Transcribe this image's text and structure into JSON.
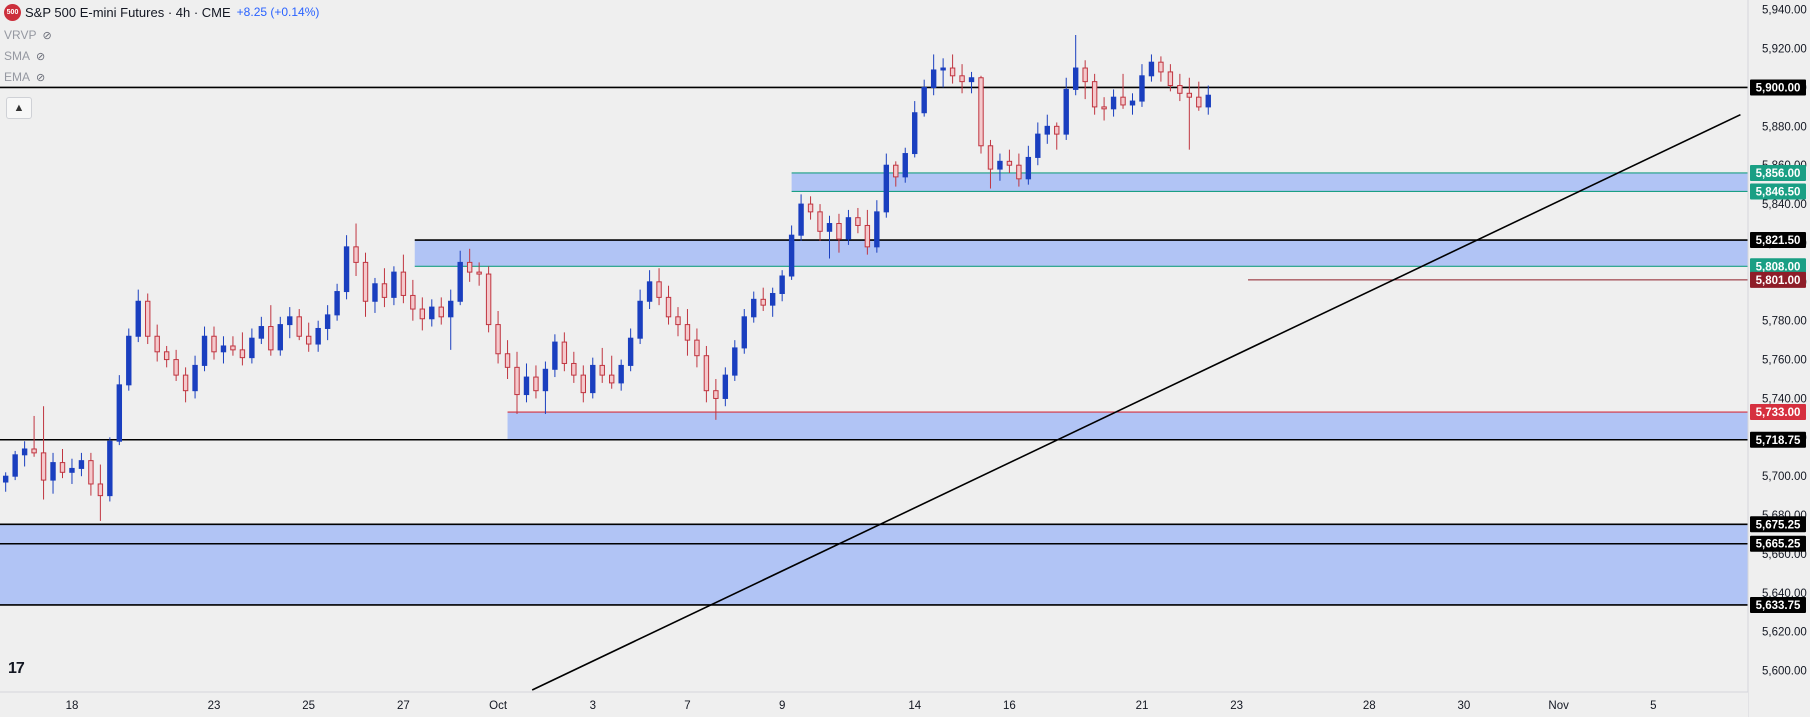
{
  "header": {
    "logo_text": "500",
    "title": "S&P 500 E-mini Futures · 4h · CME",
    "change": "+8.25 (+0.14%)"
  },
  "indicators": [
    {
      "label": "VRVP",
      "icon": "eye-off-icon"
    },
    {
      "label": "SMA",
      "icon": "eye-off-icon"
    },
    {
      "label": "EMA",
      "icon": "eye-off-icon"
    }
  ],
  "collapse_icon": "chevron-up-icon",
  "tv_logo": "17",
  "colors": {
    "background": "#efefef",
    "up": "#1a3fbf",
    "down": "#c03540",
    "zone": "#aabff5",
    "level_black": "#000000",
    "level_red": "#d6303f",
    "level_green": "#1a9f84",
    "level_maroon": "#8e1d28"
  },
  "chart_data": {
    "type": "candlestick",
    "ylim": [
      5590,
      5945
    ],
    "price_ticks": [
      "5,600.00",
      "5,620.00",
      "5,640.00",
      "5,660.00",
      "5,680.00",
      "5,700.00",
      "5,720.00",
      "5,740.00",
      "5,760.00",
      "5,780.00",
      "5,800.00",
      "5,820.00",
      "5,840.00",
      "5,860.00",
      "5,880.00",
      "5,900.00",
      "5,920.00",
      "5,940.00"
    ],
    "x_ticks": [
      {
        "label": "18",
        "at": 3.5
      },
      {
        "label": "23",
        "at": 11
      },
      {
        "label": "25",
        "at": 16
      },
      {
        "label": "27",
        "at": 21
      },
      {
        "label": "Oct",
        "at": 26
      },
      {
        "label": "3",
        "at": 31
      },
      {
        "label": "7",
        "at": 36
      },
      {
        "label": "9",
        "at": 41
      },
      {
        "label": "14",
        "at": 48
      },
      {
        "label": "16",
        "at": 53
      },
      {
        "label": "21",
        "at": 60
      },
      {
        "label": "23",
        "at": 65
      },
      {
        "label": "28",
        "at": 72
      },
      {
        "label": "30",
        "at": 77
      },
      {
        "label": "Nov",
        "at": 82
      },
      {
        "label": "5",
        "at": 87
      }
    ],
    "x_range": [
      -0.3,
      92
    ],
    "levels": [
      {
        "price": 5900.0,
        "label": "5,900.00",
        "color": "#000000",
        "from": -0.3
      },
      {
        "price": 5856.0,
        "label": "5,856.00",
        "color": "#1a9f84",
        "from": 41.5
      },
      {
        "price": 5846.5,
        "label": "5,846.50",
        "color": "#1a9f84",
        "from": 41.5
      },
      {
        "price": 5821.5,
        "label": "5,821.50",
        "color": "#000000",
        "from": 21.6
      },
      {
        "price": 5808.0,
        "label": "5,808.00",
        "color": "#1a9f84",
        "from": 21.6
      },
      {
        "price": 5801.0,
        "label": "5,801.00",
        "color": "#8e1d28",
        "from": 65.6
      },
      {
        "price": 5733.0,
        "label": "5,733.00",
        "color": "#d6303f",
        "from": 26.5
      },
      {
        "price": 5718.75,
        "label": "5,718.75",
        "color": "#000000",
        "from": -0.3
      },
      {
        "price": 5675.25,
        "label": "5,675.25",
        "color": "#000000",
        "from": -0.3
      },
      {
        "price": 5665.25,
        "label": "5,665.25",
        "color": "#000000",
        "from": -0.3
      },
      {
        "price": 5633.75,
        "label": "5,633.75",
        "color": "#000000",
        "from": -0.3
      }
    ],
    "zones": [
      {
        "from_x": 41.5,
        "low": 5846.5,
        "high": 5856.0
      },
      {
        "from_x": 21.6,
        "low": 5808.0,
        "high": 5821.5
      },
      {
        "from_x": 26.5,
        "low": 5718.75,
        "high": 5733.0
      },
      {
        "from_x": -0.3,
        "low": 5633.75,
        "high": 5675.25
      }
    ],
    "trendline": {
      "x1": 27.8,
      "y1": 5590,
      "x2": 91.6,
      "y2": 5886
    },
    "candles": [
      [
        0,
        5697,
        5702,
        5692,
        5700
      ],
      [
        0.5,
        5700,
        5713,
        5698,
        5711
      ],
      [
        1,
        5711,
        5718,
        5705,
        5714
      ],
      [
        1.5,
        5714,
        5731,
        5710,
        5712
      ],
      [
        2,
        5712,
        5736,
        5688,
        5698
      ],
      [
        2.5,
        5698,
        5712,
        5691,
        5707
      ],
      [
        3,
        5707,
        5714,
        5699,
        5702
      ],
      [
        3.5,
        5702,
        5709,
        5696,
        5704
      ],
      [
        4,
        5704,
        5712,
        5700,
        5708
      ],
      [
        4.5,
        5708,
        5712,
        5690,
        5696
      ],
      [
        5,
        5696,
        5706,
        5677,
        5690
      ],
      [
        5.5,
        5690,
        5720,
        5687,
        5718
      ],
      [
        6,
        5718,
        5752,
        5716,
        5747
      ],
      [
        6.5,
        5747,
        5776,
        5744,
        5772
      ],
      [
        7,
        5772,
        5796,
        5769,
        5790
      ],
      [
        7.5,
        5790,
        5794,
        5768,
        5772
      ],
      [
        8,
        5772,
        5778,
        5759,
        5764
      ],
      [
        8.5,
        5764,
        5767,
        5756,
        5760
      ],
      [
        9,
        5760,
        5765,
        5749,
        5752
      ],
      [
        9.5,
        5752,
        5756,
        5738,
        5744
      ],
      [
        10,
        5744,
        5762,
        5740,
        5757
      ],
      [
        10.5,
        5757,
        5777,
        5754,
        5772
      ],
      [
        11,
        5772,
        5777,
        5760,
        5764
      ],
      [
        11.5,
        5764,
        5772,
        5758,
        5767
      ],
      [
        12,
        5767,
        5772,
        5762,
        5765
      ],
      [
        12.5,
        5765,
        5774,
        5757,
        5761
      ],
      [
        13,
        5761,
        5776,
        5758,
        5771
      ],
      [
        13.5,
        5771,
        5782,
        5768,
        5777
      ],
      [
        14,
        5777,
        5788,
        5762,
        5765
      ],
      [
        14.5,
        5765,
        5782,
        5762,
        5778
      ],
      [
        15,
        5778,
        5787,
        5771,
        5782
      ],
      [
        15.5,
        5782,
        5786,
        5770,
        5772
      ],
      [
        16,
        5772,
        5779,
        5764,
        5768
      ],
      [
        16.5,
        5768,
        5780,
        5764,
        5776
      ],
      [
        17,
        5776,
        5788,
        5770,
        5783
      ],
      [
        17.5,
        5783,
        5799,
        5780,
        5795
      ],
      [
        18,
        5795,
        5824,
        5791,
        5818
      ],
      [
        18.5,
        5818,
        5830,
        5803,
        5810
      ],
      [
        19,
        5810,
        5815,
        5782,
        5790
      ],
      [
        19.5,
        5790,
        5802,
        5784,
        5799
      ],
      [
        20,
        5799,
        5807,
        5787,
        5792
      ],
      [
        20.5,
        5792,
        5808,
        5788,
        5805
      ],
      [
        21,
        5805,
        5814,
        5789,
        5793
      ],
      [
        21.5,
        5793,
        5801,
        5780,
        5786
      ],
      [
        22,
        5786,
        5792,
        5775,
        5781
      ],
      [
        22.5,
        5781,
        5791,
        5777,
        5787
      ],
      [
        23,
        5787,
        5792,
        5778,
        5782
      ],
      [
        23.5,
        5782,
        5796,
        5765,
        5790
      ],
      [
        24,
        5790,
        5816,
        5788,
        5810
      ],
      [
        24.5,
        5810,
        5817,
        5800,
        5805
      ],
      [
        25,
        5805,
        5810,
        5798,
        5804
      ],
      [
        25.5,
        5804,
        5808,
        5774,
        5778
      ],
      [
        26,
        5778,
        5785,
        5758,
        5763
      ],
      [
        26.5,
        5763,
        5770,
        5750,
        5756
      ],
      [
        27,
        5756,
        5764,
        5732,
        5742
      ],
      [
        27.5,
        5742,
        5758,
        5738,
        5751
      ],
      [
        28,
        5751,
        5757,
        5740,
        5744
      ],
      [
        28.5,
        5744,
        5759,
        5732,
        5755
      ],
      [
        29,
        5755,
        5773,
        5751,
        5769
      ],
      [
        29.5,
        5769,
        5774,
        5754,
        5758
      ],
      [
        30,
        5758,
        5764,
        5748,
        5752
      ],
      [
        30.5,
        5752,
        5757,
        5738,
        5743
      ],
      [
        31,
        5743,
        5761,
        5740,
        5757
      ],
      [
        31.5,
        5757,
        5766,
        5748,
        5752
      ],
      [
        32,
        5752,
        5762,
        5745,
        5748
      ],
      [
        32.5,
        5748,
        5760,
        5744,
        5757
      ],
      [
        33,
        5757,
        5776,
        5754,
        5771
      ],
      [
        33.5,
        5771,
        5796,
        5768,
        5790
      ],
      [
        34,
        5790,
        5806,
        5786,
        5800
      ],
      [
        34.5,
        5800,
        5807,
        5788,
        5792
      ],
      [
        35,
        5792,
        5798,
        5778,
        5782
      ],
      [
        35.5,
        5782,
        5787,
        5772,
        5778
      ],
      [
        36,
        5778,
        5786,
        5762,
        5770
      ],
      [
        36.5,
        5770,
        5776,
        5756,
        5762
      ],
      [
        37,
        5762,
        5767,
        5738,
        5744
      ],
      [
        37.5,
        5744,
        5750,
        5729,
        5740
      ],
      [
        38,
        5740,
        5756,
        5736,
        5752
      ],
      [
        38.5,
        5752,
        5770,
        5749,
        5766
      ],
      [
        39,
        5766,
        5786,
        5763,
        5782
      ],
      [
        39.5,
        5782,
        5795,
        5779,
        5791
      ],
      [
        40,
        5791,
        5797,
        5785,
        5788
      ],
      [
        40.5,
        5788,
        5797,
        5782,
        5794
      ],
      [
        41,
        5794,
        5806,
        5790,
        5803
      ],
      [
        41.5,
        5803,
        5829,
        5801,
        5824
      ],
      [
        42,
        5824,
        5845,
        5821,
        5840
      ],
      [
        42.5,
        5840,
        5844,
        5832,
        5836
      ],
      [
        43,
        5836,
        5840,
        5821,
        5826
      ],
      [
        43.5,
        5826,
        5834,
        5812,
        5830
      ],
      [
        44,
        5830,
        5835,
        5815,
        5822
      ],
      [
        44.5,
        5822,
        5837,
        5819,
        5833
      ],
      [
        45,
        5833,
        5838,
        5825,
        5829
      ],
      [
        45.5,
        5829,
        5837,
        5814,
        5818
      ],
      [
        46,
        5818,
        5842,
        5815,
        5836
      ],
      [
        46.5,
        5836,
        5866,
        5833,
        5860
      ],
      [
        47,
        5860,
        5862,
        5849,
        5854
      ],
      [
        47.5,
        5854,
        5869,
        5851,
        5866
      ],
      [
        48,
        5866,
        5893,
        5864,
        5887
      ],
      [
        48.5,
        5887,
        5904,
        5885,
        5900
      ],
      [
        49,
        5900,
        5917,
        5896,
        5909
      ],
      [
        49.5,
        5909,
        5915,
        5900,
        5910
      ],
      [
        50,
        5910,
        5917,
        5902,
        5906
      ],
      [
        50.5,
        5906,
        5912,
        5897,
        5903
      ],
      [
        51,
        5903,
        5908,
        5897,
        5905
      ],
      [
        51.5,
        5905,
        5906,
        5866,
        5870
      ],
      [
        52,
        5870,
        5873,
        5848,
        5858
      ],
      [
        52.5,
        5858,
        5866,
        5852,
        5862
      ],
      [
        53,
        5862,
        5868,
        5856,
        5860
      ],
      [
        53.5,
        5860,
        5866,
        5849,
        5853
      ],
      [
        54,
        5853,
        5870,
        5850,
        5864
      ],
      [
        54.5,
        5864,
        5882,
        5860,
        5876
      ],
      [
        55,
        5876,
        5886,
        5871,
        5880
      ],
      [
        55.5,
        5880,
        5882,
        5868,
        5876
      ],
      [
        56,
        5876,
        5905,
        5873,
        5899
      ],
      [
        56.5,
        5899,
        5927,
        5896,
        5910
      ],
      [
        57,
        5910,
        5914,
        5894,
        5903
      ],
      [
        57.5,
        5903,
        5907,
        5886,
        5890
      ],
      [
        58,
        5890,
        5895,
        5883,
        5889
      ],
      [
        58.5,
        5889,
        5899,
        5885,
        5895
      ],
      [
        59,
        5895,
        5907,
        5889,
        5891
      ],
      [
        59.5,
        5891,
        5897,
        5886,
        5893
      ],
      [
        60,
        5893,
        5912,
        5890,
        5906
      ],
      [
        60.5,
        5906,
        5917,
        5903,
        5913
      ],
      [
        61,
        5913,
        5916,
        5903,
        5908
      ],
      [
        61.5,
        5908,
        5912,
        5898,
        5901
      ],
      [
        62,
        5901,
        5907,
        5893,
        5897
      ],
      [
        62.5,
        5897,
        5905,
        5868,
        5895
      ],
      [
        63,
        5895,
        5903,
        5888,
        5890
      ],
      [
        63.5,
        5890,
        5901,
        5886,
        5896
      ]
    ]
  }
}
